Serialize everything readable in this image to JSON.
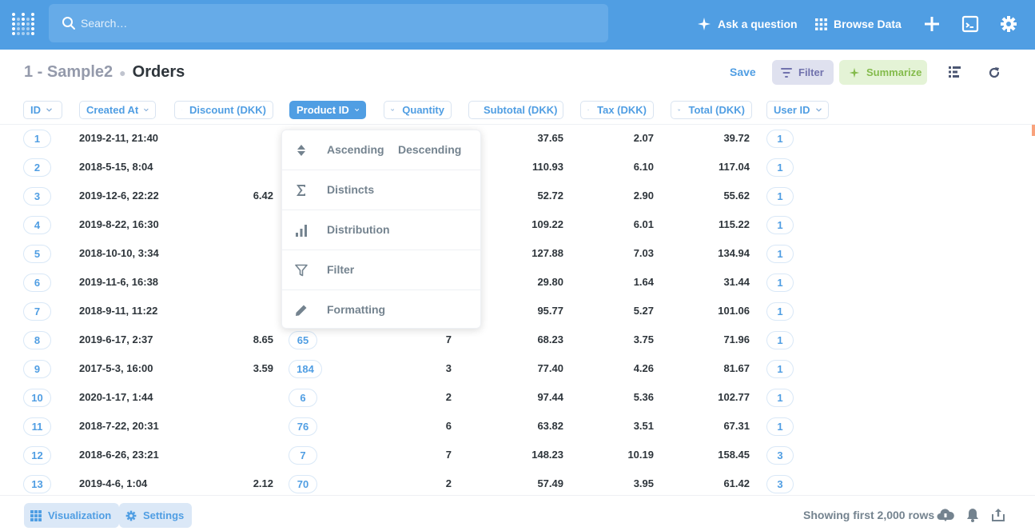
{
  "colors": {
    "brand": "#509ee3",
    "filter": "#7172ad",
    "summarize": "#84bb4c"
  },
  "topnav": {
    "search_placeholder": "Search…",
    "ask_label": "Ask a question",
    "browse_label": "Browse Data"
  },
  "header": {
    "database": "1 - Sample2",
    "table": "Orders",
    "save_label": "Save",
    "filter_label": "Filter",
    "summarize_label": "Summarize"
  },
  "columns": [
    "ID",
    "Created At",
    "Discount (DKK)",
    "Product ID",
    "Quantity",
    "Subtotal (DKK)",
    "Tax (DKK)",
    "Total (DKK)",
    "User ID"
  ],
  "rows": [
    {
      "id": "1",
      "created": "2019-2-11, 21:40",
      "discount": "",
      "product": "",
      "quantity": "",
      "subtotal": "37.65",
      "tax": "2.07",
      "total": "39.72",
      "user": "1"
    },
    {
      "id": "2",
      "created": "2018-5-15, 8:04",
      "discount": "",
      "product": "",
      "quantity": "",
      "subtotal": "110.93",
      "tax": "6.10",
      "total": "117.04",
      "user": "1"
    },
    {
      "id": "3",
      "created": "2019-12-6, 22:22",
      "discount": "6.42",
      "product": "",
      "quantity": "",
      "subtotal": "52.72",
      "tax": "2.90",
      "total": "55.62",
      "user": "1"
    },
    {
      "id": "4",
      "created": "2019-8-22, 16:30",
      "discount": "",
      "product": "",
      "quantity": "",
      "subtotal": "109.22",
      "tax": "6.01",
      "total": "115.22",
      "user": "1"
    },
    {
      "id": "5",
      "created": "2018-10-10, 3:34",
      "discount": "",
      "product": "",
      "quantity": "",
      "subtotal": "127.88",
      "tax": "7.03",
      "total": "134.94",
      "user": "1"
    },
    {
      "id": "6",
      "created": "2019-11-6, 16:38",
      "discount": "",
      "product": "",
      "quantity": "",
      "subtotal": "29.80",
      "tax": "1.64",
      "total": "31.44",
      "user": "1"
    },
    {
      "id": "7",
      "created": "2018-9-11, 11:22",
      "discount": "",
      "product": "",
      "quantity": "",
      "subtotal": "95.77",
      "tax": "5.27",
      "total": "101.06",
      "user": "1"
    },
    {
      "id": "8",
      "created": "2019-6-17, 2:37",
      "discount": "8.65",
      "product": "65",
      "quantity": "7",
      "subtotal": "68.23",
      "tax": "3.75",
      "total": "71.96",
      "user": "1"
    },
    {
      "id": "9",
      "created": "2017-5-3, 16:00",
      "discount": "3.59",
      "product": "184",
      "quantity": "3",
      "subtotal": "77.40",
      "tax": "4.26",
      "total": "81.67",
      "user": "1"
    },
    {
      "id": "10",
      "created": "2020-1-17, 1:44",
      "discount": "",
      "product": "6",
      "quantity": "2",
      "subtotal": "97.44",
      "tax": "5.36",
      "total": "102.77",
      "user": "1"
    },
    {
      "id": "11",
      "created": "2018-7-22, 20:31",
      "discount": "",
      "product": "76",
      "quantity": "6",
      "subtotal": "63.82",
      "tax": "3.51",
      "total": "67.31",
      "user": "1"
    },
    {
      "id": "12",
      "created": "2018-6-26, 23:21",
      "discount": "",
      "product": "7",
      "quantity": "7",
      "subtotal": "148.23",
      "tax": "10.19",
      "total": "158.45",
      "user": "3"
    },
    {
      "id": "13",
      "created": "2019-4-6, 1:04",
      "discount": "2.12",
      "product": "70",
      "quantity": "2",
      "subtotal": "57.49",
      "tax": "3.95",
      "total": "61.42",
      "user": "3"
    }
  ],
  "column_menu": {
    "ascending": "Ascending",
    "descending": "Descending",
    "distincts": "Distincts",
    "distribution": "Distribution",
    "filter": "Filter",
    "formatting": "Formatting"
  },
  "footer": {
    "visualization_label": "Visualization",
    "settings_label": "Settings",
    "row_count": "Showing first 2,000 rows"
  }
}
